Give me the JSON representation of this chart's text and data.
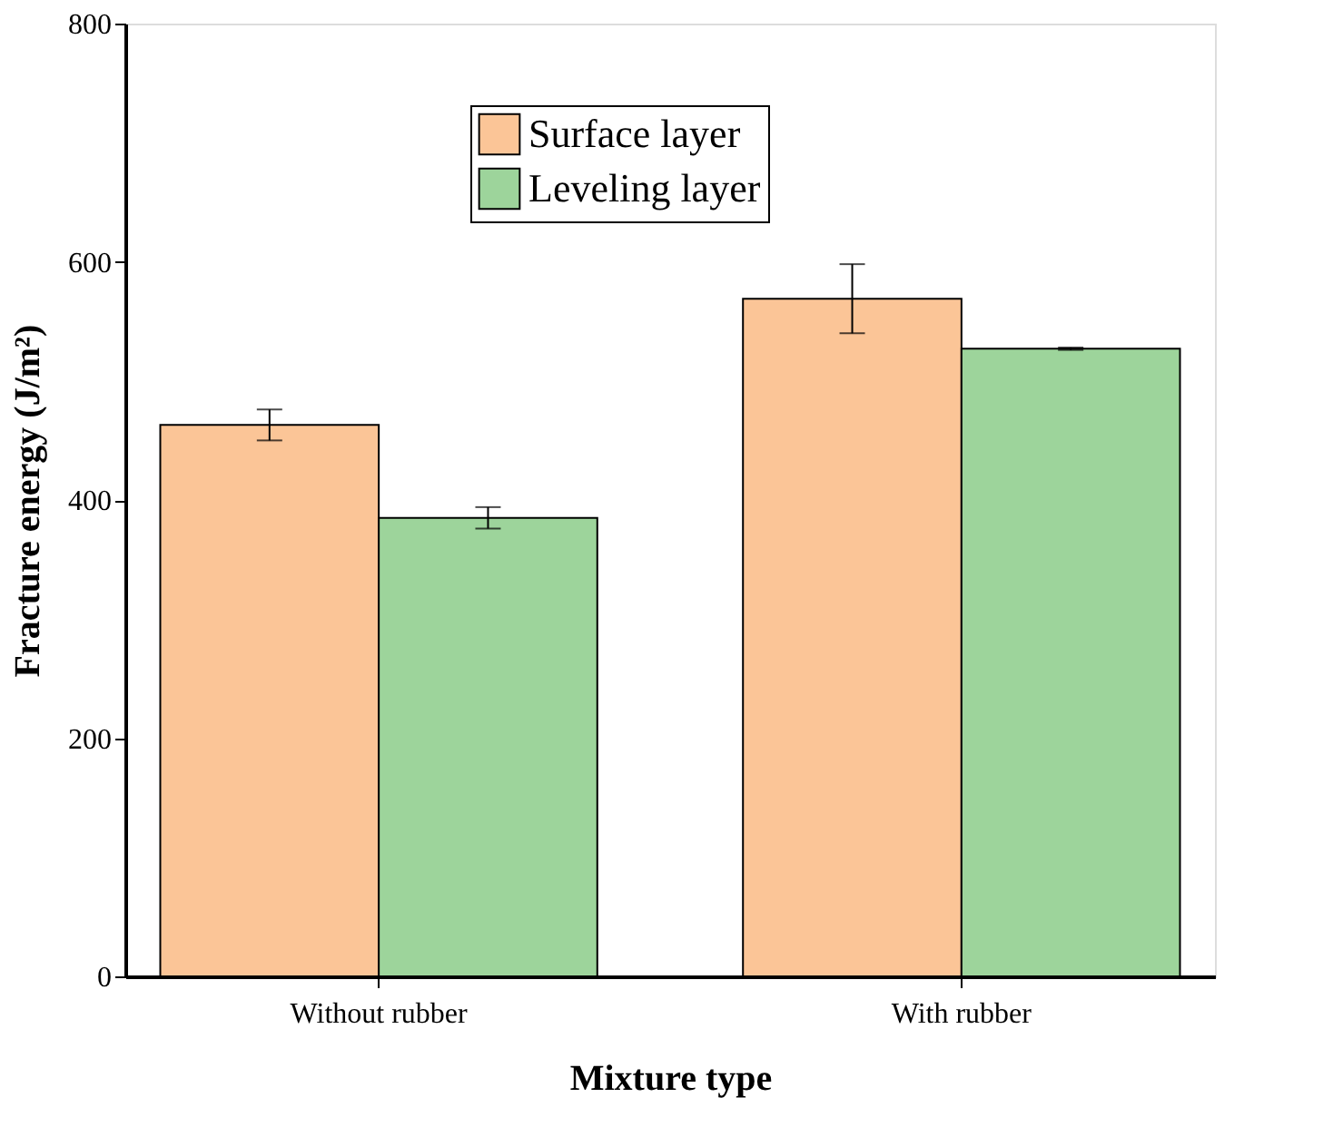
{
  "chart_data": {
    "type": "bar",
    "xlabel": "Mixture type",
    "ylabel": "Fracture energy (J/m²)",
    "categories": [
      "Without rubber",
      "With rubber"
    ],
    "series": [
      {
        "name": "Surface layer",
        "color": "#fbc597",
        "values": [
          463,
          569
        ],
        "errors": [
          13,
          29
        ]
      },
      {
        "name": "Leveling layer",
        "color": "#9dd49b",
        "values": [
          385,
          527
        ],
        "errors": [
          9,
          1
        ]
      }
    ],
    "ylim": [
      0,
      800
    ],
    "yticks": [
      0,
      200,
      400,
      600,
      800
    ],
    "grid": false,
    "legend": "top"
  }
}
